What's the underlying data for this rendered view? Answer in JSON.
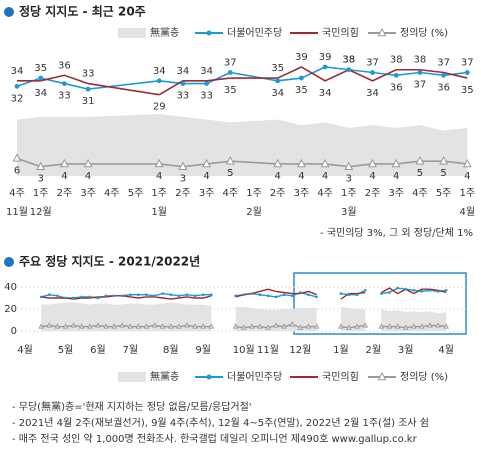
{
  "chart_data": [
    {
      "type": "line",
      "title": "정당 지지도 - 최근 20주",
      "categories": [
        "4주",
        "1주",
        "2주",
        "3주",
        "4주",
        "5주",
        "1주",
        "2주",
        "3주",
        "4주",
        "1주",
        "2주",
        "3주",
        "4주",
        "1주",
        "2주",
        "3주",
        "4주",
        "5주",
        "1주"
      ],
      "months": [
        "11월",
        "12월",
        null,
        null,
        null,
        null,
        "1월",
        null,
        null,
        null,
        "2월",
        null,
        null,
        null,
        "3월",
        null,
        null,
        null,
        null,
        "4월"
      ],
      "connect_gaps": true,
      "series": [
        {
          "name": "無黨층",
          "color": "#e3e3e3",
          "style": "area",
          "values": [
            20,
            21,
            21,
            21,
            null,
            null,
            22,
            21,
            20,
            19,
            null,
            20,
            18,
            19,
            17,
            18,
            17,
            18,
            16,
            17
          ]
        },
        {
          "name": "더불어민주당",
          "color": "#1b9ad8",
          "style": "line",
          "marker": "dot",
          "label_side": "auto",
          "values": [
            32,
            35,
            33,
            31,
            null,
            null,
            34,
            33,
            33,
            37,
            null,
            34,
            35,
            39,
            38,
            37,
            36,
            37,
            36,
            37
          ]
        },
        {
          "name": "국민의힘",
          "color": "#9c2c31",
          "style": "line",
          "label_side": "auto",
          "values": [
            34,
            34,
            36,
            33,
            null,
            null,
            29,
            34,
            34,
            35,
            null,
            35,
            39,
            34,
            38,
            34,
            38,
            38,
            37,
            35
          ]
        },
        {
          "name": "정의당 (%)",
          "color": "#9a9a9a",
          "style": "line",
          "marker": "triangle",
          "label_side": "below",
          "values": [
            6,
            3,
            4,
            4,
            null,
            null,
            4,
            3,
            4,
            5,
            null,
            4,
            4,
            4,
            3,
            4,
            4,
            5,
            5,
            4
          ]
        }
      ],
      "note": "- 국민의당 3%, 그 외 정당/단체 1%"
    },
    {
      "type": "line",
      "title": "주요 정당 지지도 - 2021/2022년",
      "categories": [
        "4월",
        null,
        null,
        null,
        null,
        "5월",
        null,
        null,
        null,
        "6월",
        null,
        null,
        null,
        "7월",
        null,
        null,
        null,
        null,
        "8월",
        null,
        null,
        null,
        "9월",
        null,
        null,
        null,
        null,
        "10월",
        null,
        null,
        "11월",
        null,
        null,
        null,
        "12월",
        null,
        null,
        null,
        null,
        "1월",
        null,
        null,
        null,
        "2월",
        null,
        null,
        null,
        "3월",
        null,
        null,
        null,
        null,
        "4월"
      ],
      "ylim": [
        0,
        45
      ],
      "yticks": [
        0,
        20,
        40
      ],
      "grid": true,
      "connect_gaps": false,
      "series": [
        {
          "name": "無黨층",
          "color": "#e3e3e3",
          "style": "area",
          "values": [
            null,
            null,
            24,
            24,
            25,
            26,
            26,
            25,
            24,
            25,
            25,
            24,
            24,
            25,
            25,
            24,
            24,
            25,
            26,
            25,
            24,
            24,
            24,
            23,
            null,
            null,
            22,
            22,
            21,
            20,
            19,
            19,
            20,
            20,
            21,
            21,
            21,
            null,
            null,
            22,
            21,
            20,
            19,
            null,
            20,
            18,
            19,
            17,
            18,
            17,
            18,
            16,
            17
          ]
        },
        {
          "name": "더불어민주당",
          "color": "#1b9ad8",
          "style": "line",
          "marker": "dot",
          "values": [
            null,
            null,
            31,
            33,
            32,
            30,
            30,
            31,
            31,
            30,
            32,
            32,
            32,
            33,
            33,
            33,
            32,
            34,
            33,
            32,
            33,
            32,
            33,
            33,
            null,
            null,
            32,
            33,
            34,
            33,
            32,
            31,
            33,
            32,
            35,
            33,
            31,
            null,
            null,
            34,
            33,
            33,
            37,
            null,
            34,
            35,
            39,
            38,
            37,
            36,
            37,
            36,
            37
          ]
        },
        {
          "name": "국민의힘",
          "color": "#9c2c31",
          "style": "line",
          "values": [
            null,
            null,
            31,
            30,
            30,
            30,
            29,
            30,
            30,
            31,
            31,
            32,
            32,
            31,
            30,
            31,
            31,
            30,
            29,
            30,
            31,
            30,
            30,
            32,
            null,
            null,
            31,
            33,
            34,
            36,
            38,
            36,
            35,
            34,
            34,
            36,
            33,
            null,
            null,
            29,
            34,
            34,
            35,
            null,
            35,
            39,
            34,
            38,
            34,
            38,
            38,
            37,
            35
          ]
        },
        {
          "name": "정의당 (%)",
          "color": "#9a9a9a",
          "style": "line",
          "marker": "triangle",
          "values": [
            null,
            null,
            4,
            5,
            4,
            4,
            5,
            4,
            4,
            5,
            4,
            4,
            5,
            4,
            4,
            4,
            5,
            4,
            4,
            4,
            5,
            4,
            4,
            4,
            null,
            null,
            4,
            3,
            4,
            4,
            3,
            5,
            4,
            6,
            3,
            4,
            4,
            null,
            null,
            4,
            3,
            4,
            5,
            null,
            4,
            4,
            4,
            3,
            4,
            4,
            5,
            5,
            4
          ]
        }
      ]
    }
  ],
  "footnotes": [
    "- 무당(無黨)층='현재 지지하는 정당 없음/모름/응답거절'",
    "- 2021년 4월 2주(재보궐선거), 9월 4주(추석), 12월 4~5주(연말), 2022년 2월 1주(설) 조사 쉼",
    "- 매주 전국 성인 약 1,000명 전화조사. 한국갤럽 데일리 오피니언 제490호 www.gallup.co.kr"
  ]
}
